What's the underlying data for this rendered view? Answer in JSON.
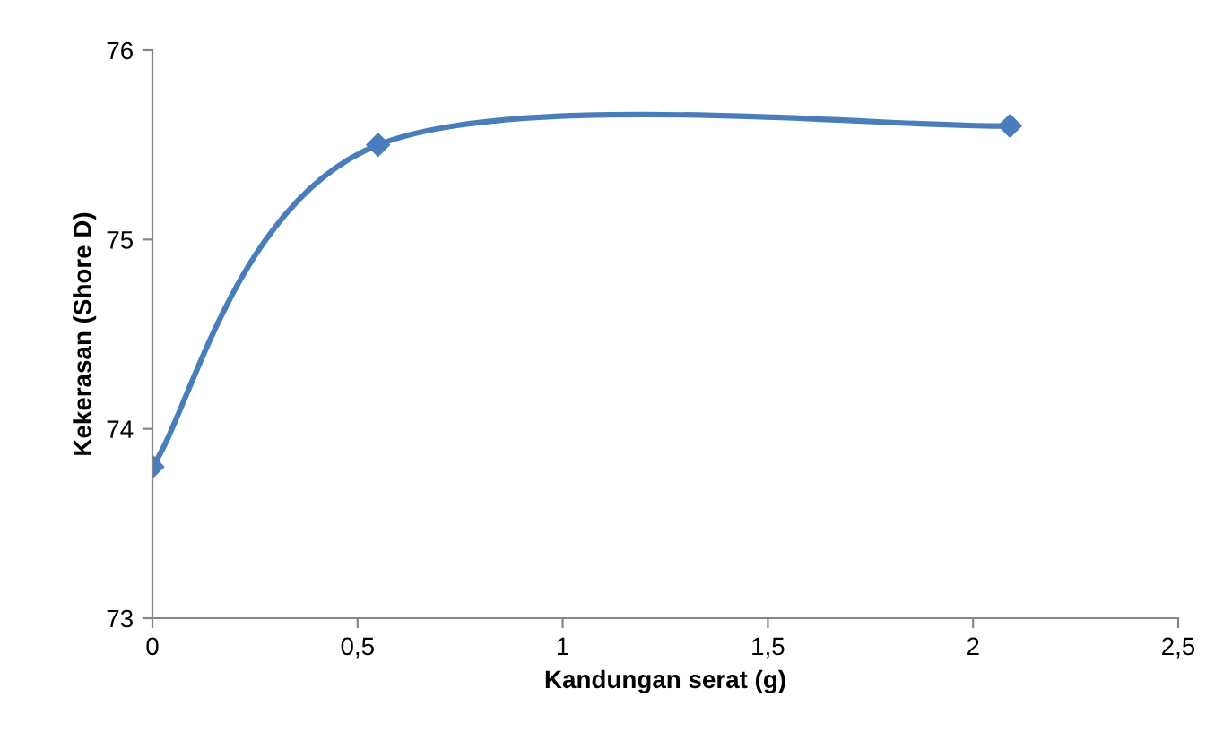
{
  "chart_data": {
    "type": "line",
    "xlabel": "Kandungan serat (g)",
    "ylabel": "Kekerasan (Shore D)",
    "x": [
      0,
      0.55,
      2.09
    ],
    "series": [
      {
        "color": "#4a7ebb",
        "values": [
          73.8,
          75.5,
          75.6
        ]
      }
    ],
    "xlim": [
      0,
      2.5
    ],
    "ylim": [
      73,
      76
    ],
    "xticks": [
      0,
      {
        "value": 0.5,
        "label": "0,5"
      },
      1,
      {
        "value": 1.5,
        "label": "1,5"
      },
      2,
      {
        "value": 2.5,
        "label": "2,5"
      }
    ],
    "yticks": [
      73,
      74,
      75,
      76
    ],
    "marker": "diamond",
    "line_style": "solid",
    "grid": false,
    "legend": false
  }
}
